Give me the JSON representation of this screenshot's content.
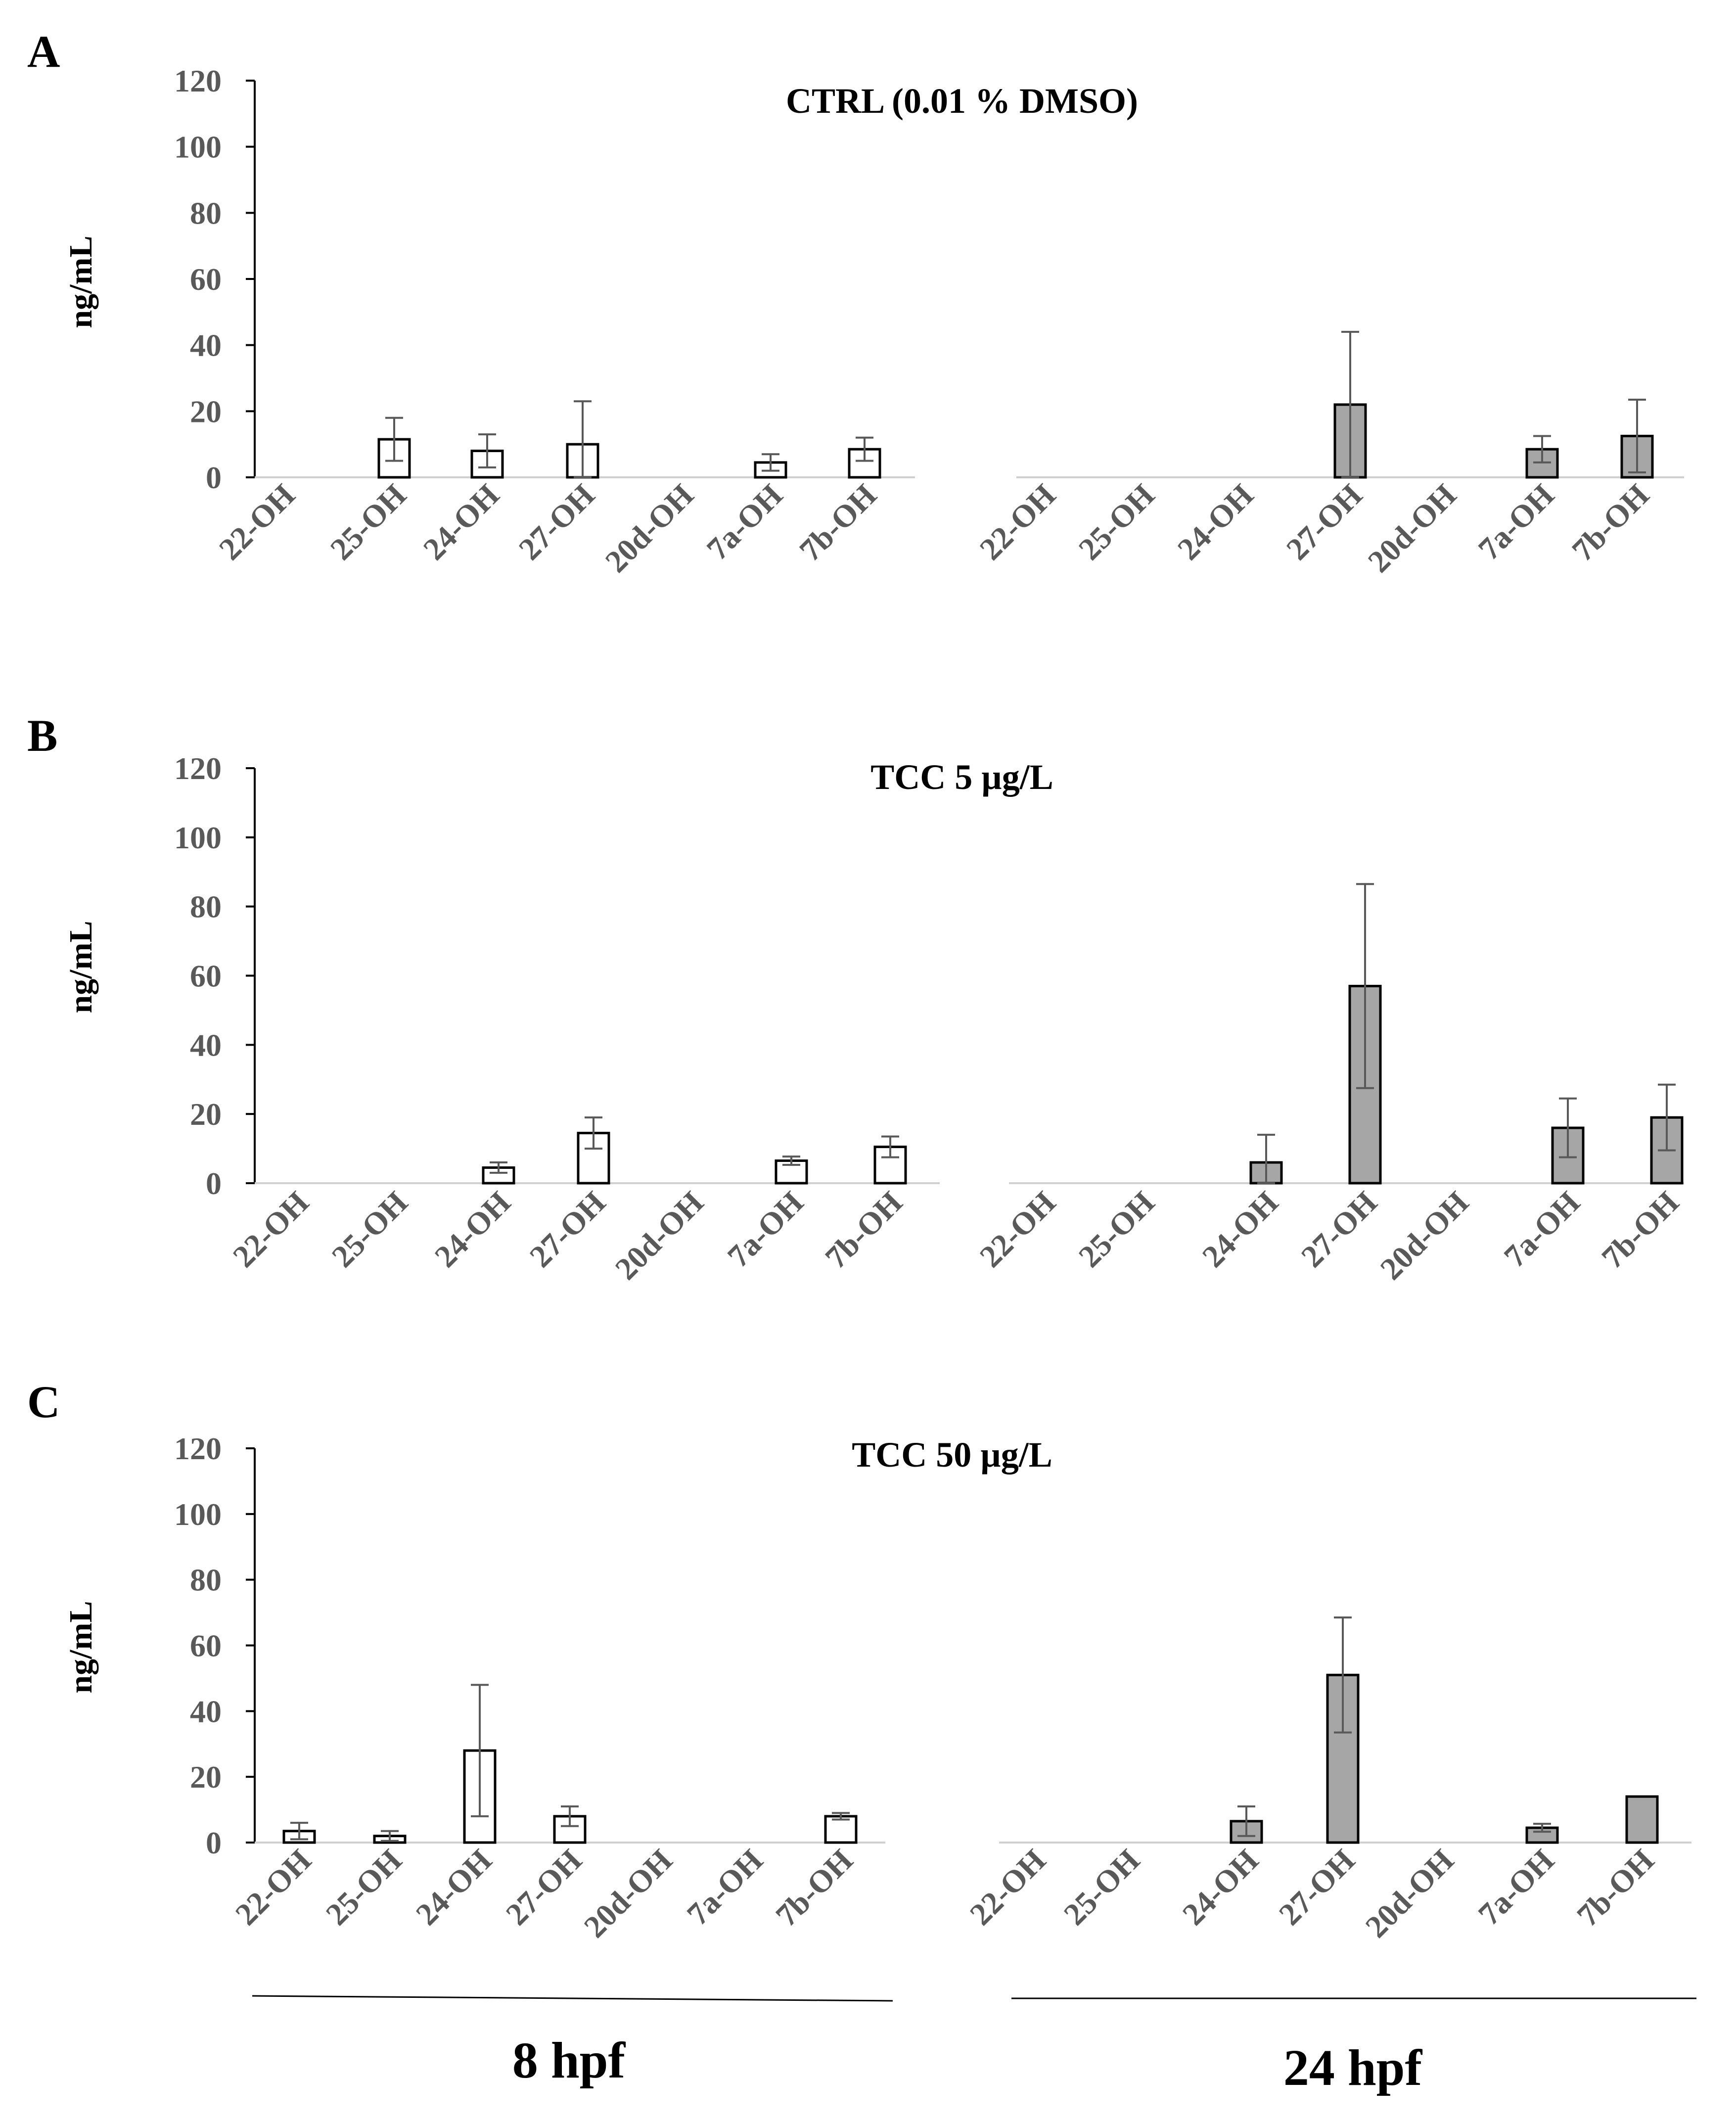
{
  "palette": {
    "bar_8hpf": "#ffffff",
    "bar_24hpf": "#a6a6a6",
    "bar_stroke": "#000000",
    "error_bar": "#595959",
    "axis": "#000000",
    "baseline": "#d0d0d0",
    "tick_label": "#595959",
    "text": "#000000"
  },
  "groups": {
    "left": "8 hpf",
    "right": "24 hpf"
  },
  "chart_data": [
    {
      "type": "bar",
      "panel_label": "A",
      "title": "CTRL (0.01 % DMSO)",
      "ylabel": "ng/mL",
      "ylim": [
        0,
        120
      ],
      "yticks": [
        "0",
        "20",
        "40",
        "60",
        "80",
        "100",
        "120"
      ],
      "categories": [
        "22-OH",
        "25-OH",
        "24-OH",
        "27-OH",
        "20d-OH",
        "7a-OH",
        "7b-OH"
      ],
      "series": [
        {
          "name": "8 hpf",
          "values": [
            0,
            11.5,
            8,
            10,
            0,
            4.5,
            8.5
          ],
          "errors": [
            0,
            6.5,
            5,
            13,
            0,
            2.5,
            3.5
          ]
        },
        {
          "name": "24 hpf",
          "values": [
            0,
            0,
            0,
            22,
            0,
            8.5,
            12.5
          ],
          "errors": [
            0,
            0,
            0,
            22,
            0,
            4,
            11
          ]
        }
      ]
    },
    {
      "type": "bar",
      "panel_label": "B",
      "title": "TCC 5 µg/L",
      "ylabel": "ng/mL",
      "ylim": [
        0,
        120
      ],
      "yticks": [
        "0",
        "20",
        "40",
        "60",
        "80",
        "100",
        "120"
      ],
      "categories": [
        "22-OH",
        "25-OH",
        "24-OH",
        "27-OH",
        "20d-OH",
        "7a-OH",
        "7b-OH"
      ],
      "series": [
        {
          "name": "8 hpf",
          "values": [
            0,
            0,
            4.5,
            14.5,
            0,
            6.5,
            10.5
          ],
          "errors": [
            0,
            0,
            1.5,
            4.5,
            0,
            1.2,
            3
          ]
        },
        {
          "name": "24 hpf",
          "values": [
            0,
            0,
            6,
            57,
            0,
            16,
            19
          ],
          "errors": [
            0,
            0,
            8,
            29.5,
            0,
            8.5,
            9.5
          ]
        }
      ]
    },
    {
      "type": "bar",
      "panel_label": "C",
      "title": "TCC 50 µg/L",
      "ylabel": "ng/mL",
      "ylim": [
        0,
        120
      ],
      "yticks": [
        "0",
        "20",
        "40",
        "60",
        "80",
        "100",
        "120"
      ],
      "categories": [
        "22-OH",
        "25-OH",
        "24-OH",
        "27-OH",
        "20d-OH",
        "7a-OH",
        "7b-OH"
      ],
      "series": [
        {
          "name": "8 hpf",
          "values": [
            3.5,
            2,
            28,
            8,
            0,
            0,
            8
          ],
          "errors": [
            2.5,
            1.5,
            20,
            3,
            0,
            0,
            1
          ]
        },
        {
          "name": "24 hpf",
          "values": [
            0,
            0,
            6.5,
            51,
            0,
            4.5,
            14
          ],
          "errors": [
            0,
            0,
            4.5,
            17.5,
            0,
            1.2,
            0
          ]
        }
      ]
    }
  ]
}
